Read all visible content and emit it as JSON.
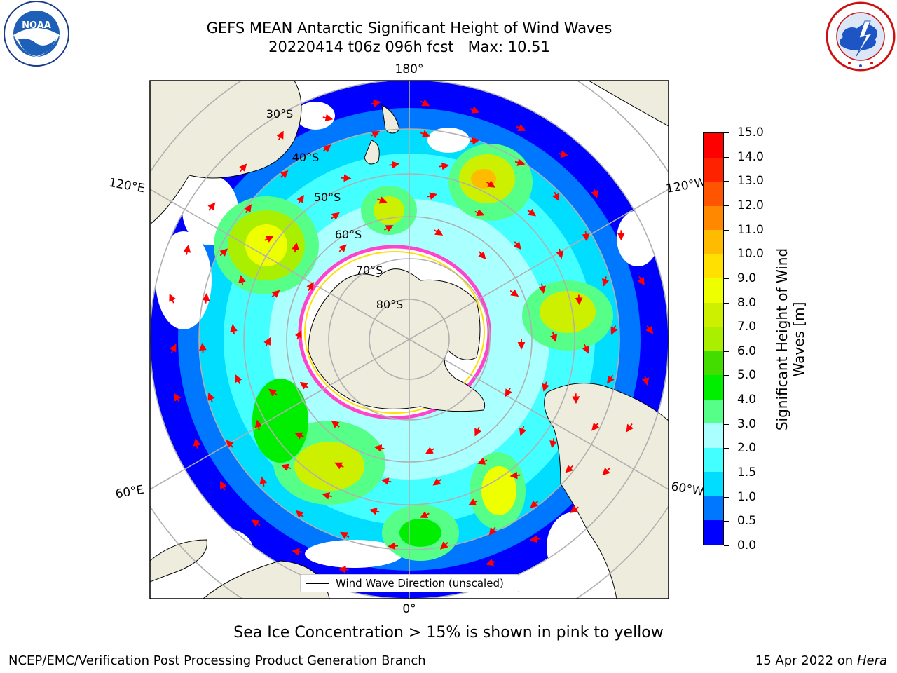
{
  "title": {
    "line1": "GEFS MEAN Antarctic Significant Height of Wind Waves",
    "line2": "20220414 t06z 096h fcst   Max: 10.51"
  },
  "logos": {
    "noaa": {
      "name": "NOAA",
      "lettering": "NATIONAL OCEANIC AND ATMOSPHERIC ADMINISTRATION · U.S. DEPARTMENT OF COMMERCE"
    },
    "nws": {
      "lettering": "NATIONAL WEATHER SERVICE"
    }
  },
  "map": {
    "projection": "south-polar-stereographic",
    "longitude_labels": {
      "top": "180°",
      "bottom": "0°",
      "left_upper": "120°E",
      "left_lower": "60°E",
      "right_upper": "120°W",
      "right_lower": "60°W"
    },
    "latitude_labels": [
      "30°S",
      "40°S",
      "50°S",
      "60°S",
      "70°S",
      "80°S"
    ],
    "colors": {
      "land": "#eeecdc",
      "sea_ice": "#ff44cc",
      "arrow": "#ff0000",
      "grid": "#b0b0b0"
    },
    "arrow_icon": "red-direction-arrow-icon"
  },
  "colorbar": {
    "title_line1": "Significant Height of Wind",
    "title_line2": "Waves [m]",
    "tick_labels": [
      "0.0",
      "0.5",
      "1.0",
      "1.5",
      "2.0",
      "3.0",
      "4.0",
      "5.0",
      "6.0",
      "7.0",
      "8.0",
      "9.0",
      "10.0",
      "11.0",
      "12.0",
      "13.0",
      "14.0",
      "15.0"
    ],
    "colors": [
      "#0000ff",
      "#0077ff",
      "#00ddff",
      "#44ffff",
      "#aaffff",
      "#55ff88",
      "#00ee00",
      "#44dd00",
      "#aaee00",
      "#ccf000",
      "#eeff00",
      "#ffe000",
      "#ffbb00",
      "#ff8800",
      "#ff5500",
      "#ff2200",
      "#ff0000"
    ]
  },
  "legend": {
    "label": "Wind Wave Direction (unscaled)"
  },
  "caption": "Sea Ice Concentration > 15% is shown in pink to yellow",
  "footer": {
    "credit": "NCEP/EMC/Verification Post Processing Product Generation Branch",
    "date": "15 Apr 2022 on",
    "host": "Hera"
  }
}
